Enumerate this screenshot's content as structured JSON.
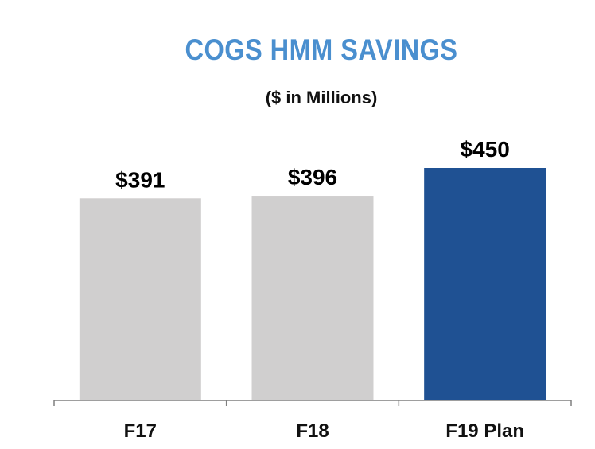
{
  "chart_data": {
    "type": "bar",
    "title": "COGS HMM SAVINGS",
    "subtitle": "($ in Millions)",
    "categories": [
      "F17",
      "F18",
      "F19 Plan"
    ],
    "values": [
      391,
      396,
      450
    ],
    "value_labels": [
      "$391",
      "$396",
      "$450"
    ],
    "ylim": [
      0,
      450
    ],
    "grid": false,
    "colors": [
      "#d0cfcf",
      "#d0cfcf",
      "#1f5193"
    ],
    "axis_color": "#7f7f7f"
  }
}
